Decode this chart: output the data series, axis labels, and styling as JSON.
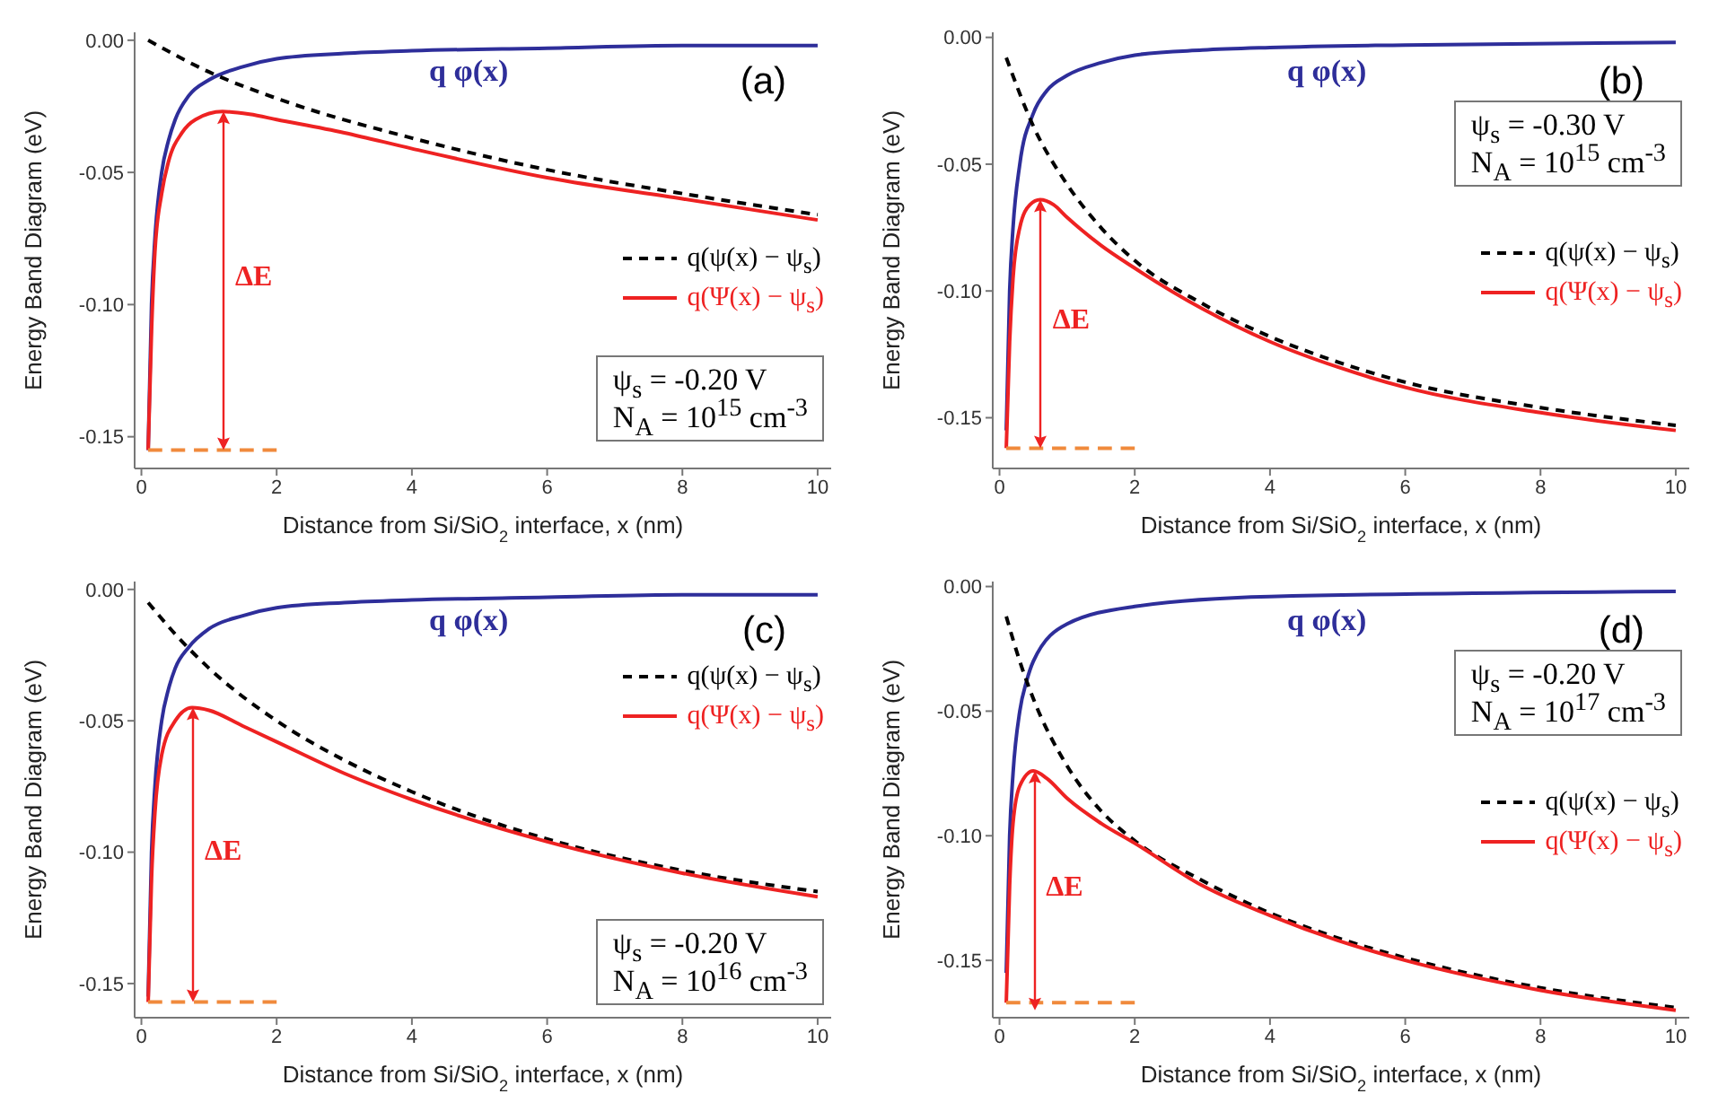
{
  "chart_data": [
    {
      "type": "line",
      "xlabel": "Distance from Si/SiO$_{2}$ interface, x (nm)",
      "ylabel": "Energy Band Diagram (eV)",
      "xlim": [
        -0.1,
        10.2
      ],
      "ylim": [
        -0.162,
        0.003
      ],
      "xticks": [
        0,
        2,
        4,
        6,
        8,
        10
      ],
      "yticks": [
        {
          "value": 0,
          "label": "0.00"
        },
        {
          "value": -0.05,
          "label": "-0.05"
        },
        {
          "value": -0.1,
          "label": "-0.10"
        },
        {
          "value": -0.15,
          "label": "-0.15"
        }
      ],
      "legend": "right",
      "marker": "none",
      "grid": false,
      "annotations": [
        "(a)",
        "q φ(x)",
        "ΔE",
        "ψ$_{s}$ = -0.20 V",
        "N$_{A}$ = 10$^{15}$ cm$^{-3}$"
      ],
      "series": [
        {
          "color": "#2e2e9a",
          "line_style": "solid",
          "x": [
            0.1,
            0.15,
            0.2,
            0.3,
            0.4,
            0.5,
            0.7,
            1,
            1.5,
            2,
            3,
            4,
            6,
            8,
            10
          ],
          "values": [
            -0.155,
            -0.1,
            -0.075,
            -0.05,
            -0.038,
            -0.03,
            -0.021,
            -0.015,
            -0.01,
            -0.007,
            -0.005,
            -0.004,
            -0.003,
            -0.002,
            -0.002
          ]
        },
        {
          "name": "q(ψ(x) − ψ$_{s}$)",
          "color": "#000000",
          "line_style": "dashed",
          "x": [
            0.1,
            1,
            2,
            4,
            6,
            8,
            10
          ],
          "values": [
            0,
            -0.012,
            -0.022,
            -0.037,
            -0.049,
            -0.058,
            -0.066
          ]
        },
        {
          "name": "q(Ψ(x) − ψ$_{s}$)",
          "color": "#ee2222",
          "line_style": "solid",
          "x": [
            0.1,
            0.15,
            0.2,
            0.3,
            0.4,
            0.6,
            0.8,
            1.2,
            1.6,
            2,
            3,
            4,
            6,
            8,
            10
          ],
          "values": [
            -0.155,
            -0.11,
            -0.08,
            -0.058,
            -0.046,
            -0.035,
            -0.03,
            -0.027,
            -0.028,
            -0.03,
            -0.035,
            -0.041,
            -0.052,
            -0.06,
            -0.068
          ]
        },
        {
          "color": "#f08a3c",
          "line_style": "dashed",
          "x": [
            0.1,
            2
          ],
          "values": [
            -0.155,
            -0.155
          ]
        }
      ]
    },
    {
      "type": "line",
      "xlabel": "Distance from Si/SiO$_{2}$ interface, x (nm)",
      "ylabel": "Energy Band Diagram (eV)",
      "xlim": [
        -0.1,
        10.2
      ],
      "ylim": [
        -0.17,
        0.002
      ],
      "xticks": [
        0,
        2,
        4,
        6,
        8,
        10
      ],
      "yticks": [
        {
          "value": 0,
          "label": "0.00"
        },
        {
          "value": -0.05,
          "label": "-0.05"
        },
        {
          "value": -0.1,
          "label": "-0.10"
        },
        {
          "value": -0.15,
          "label": "-0.15"
        }
      ],
      "legend": "right",
      "marker": "none",
      "grid": false,
      "annotations": [
        "(b)",
        "q φ(x)",
        "ΔE",
        "ψ$_{s}$ = -0.30 V",
        "N$_{A}$ = 10$^{15}$ cm$^{-3}$"
      ],
      "series": [
        {
          "color": "#2e2e9a",
          "line_style": "solid",
          "x": [
            0.1,
            0.15,
            0.2,
            0.3,
            0.5,
            0.7,
            1,
            1.5,
            2,
            3,
            4,
            6,
            10
          ],
          "values": [
            -0.155,
            -0.1,
            -0.075,
            -0.05,
            -0.03,
            -0.021,
            -0.015,
            -0.01,
            -0.007,
            -0.005,
            -0.004,
            -0.003,
            -0.002
          ]
        },
        {
          "name": "q(ψ(x) − ψ$_{s}$)",
          "color": "#000000",
          "line_style": "dashed",
          "x": [
            0.1,
            0.5,
            1,
            1.5,
            2,
            3,
            4,
            5,
            6,
            8,
            10
          ],
          "values": [
            -0.008,
            -0.035,
            -0.058,
            -0.075,
            -0.088,
            -0.105,
            -0.118,
            -0.128,
            -0.136,
            -0.146,
            -0.153
          ]
        },
        {
          "name": "q(Ψ(x) − ψ$_{s}$)",
          "color": "#ee2222",
          "line_style": "solid",
          "x": [
            0.1,
            0.15,
            0.2,
            0.3,
            0.45,
            0.6,
            0.8,
            1,
            1.5,
            2,
            3,
            4,
            5,
            6,
            8,
            10
          ],
          "values": [
            -0.162,
            -0.12,
            -0.095,
            -0.075,
            -0.066,
            -0.064,
            -0.066,
            -0.071,
            -0.082,
            -0.091,
            -0.107,
            -0.12,
            -0.13,
            -0.138,
            -0.148,
            -0.155
          ]
        },
        {
          "color": "#f08a3c",
          "line_style": "dashed",
          "x": [
            0.1,
            2
          ],
          "values": [
            -0.162,
            -0.162
          ]
        }
      ]
    },
    {
      "type": "line",
      "xlabel": "Distance from Si/SiO$_{2}$ interface, x (nm)",
      "ylabel": "Energy Band Diagram (eV)",
      "xlim": [
        -0.1,
        10.2
      ],
      "ylim": [
        -0.163,
        0.003
      ],
      "xticks": [
        0,
        2,
        4,
        6,
        8,
        10
      ],
      "yticks": [
        {
          "value": 0,
          "label": "0.00"
        },
        {
          "value": -0.05,
          "label": "-0.05"
        },
        {
          "value": -0.1,
          "label": "-0.10"
        },
        {
          "value": -0.15,
          "label": "-0.15"
        }
      ],
      "legend": "top right",
      "marker": "none",
      "grid": false,
      "annotations": [
        "(c)",
        "q φ(x)",
        "ΔE",
        "ψ$_{s}$ = -0.20 V",
        "N$_{A}$ = 10$^{16}$ cm$^{-3}$"
      ],
      "series": [
        {
          "color": "#2e2e9a",
          "line_style": "solid",
          "x": [
            0.1,
            0.15,
            0.2,
            0.3,
            0.4,
            0.5,
            0.7,
            1,
            1.5,
            2,
            3,
            4,
            6,
            8,
            10
          ],
          "values": [
            -0.155,
            -0.1,
            -0.075,
            -0.05,
            -0.038,
            -0.03,
            -0.022,
            -0.015,
            -0.01,
            -0.007,
            -0.005,
            -0.004,
            -0.003,
            -0.002,
            -0.002
          ]
        },
        {
          "name": "q(ψ(x) − ψ$_{s}$)",
          "color": "#000000",
          "line_style": "dashed",
          "x": [
            0.1,
            0.5,
            1,
            2,
            3,
            4,
            6,
            8,
            10
          ],
          "values": [
            -0.005,
            -0.017,
            -0.03,
            -0.05,
            -0.065,
            -0.077,
            -0.095,
            -0.107,
            -0.115
          ]
        },
        {
          "name": "q(Ψ(x) − ψ$_{s}$)",
          "color": "#ee2222",
          "line_style": "solid",
          "x": [
            0.1,
            0.15,
            0.2,
            0.3,
            0.5,
            0.75,
            1,
            1.5,
            2,
            3,
            4,
            6,
            8,
            10
          ],
          "values": [
            -0.157,
            -0.11,
            -0.085,
            -0.063,
            -0.05,
            -0.045,
            -0.046,
            -0.052,
            -0.058,
            -0.07,
            -0.08,
            -0.096,
            -0.108,
            -0.117
          ]
        },
        {
          "color": "#f08a3c",
          "line_style": "dashed",
          "x": [
            0.1,
            2
          ],
          "values": [
            -0.157,
            -0.157
          ]
        }
      ]
    },
    {
      "type": "line",
      "xlabel": "Distance from Si/SiO$_{2}$ interface, x (nm)",
      "ylabel": "Energy Band Diagram (eV)",
      "xlim": [
        -0.1,
        10.2
      ],
      "ylim": [
        -0.173,
        0.002
      ],
      "xticks": [
        0,
        2,
        4,
        6,
        8,
        10
      ],
      "yticks": [
        {
          "value": 0,
          "label": "0.00"
        },
        {
          "value": -0.05,
          "label": "-0.05"
        },
        {
          "value": -0.1,
          "label": "-0.10"
        },
        {
          "value": -0.15,
          "label": "-0.15"
        }
      ],
      "legend": "right",
      "marker": "none",
      "grid": false,
      "annotations": [
        "(d)",
        "q φ(x)",
        "ΔE",
        "ψ$_{s}$ = -0.20 V",
        "N$_{A}$ = 10$^{17}$ cm$^{-3}$"
      ],
      "series": [
        {
          "color": "#2e2e9a",
          "line_style": "solid",
          "x": [
            0.1,
            0.15,
            0.2,
            0.3,
            0.4,
            0.5,
            1,
            2,
            4,
            10
          ],
          "values": [
            -0.155,
            -0.1,
            -0.075,
            -0.05,
            -0.038,
            -0.03,
            -0.015,
            -0.008,
            -0.004,
            -0.002
          ]
        },
        {
          "name": "q(ψ(x) − ψ$_{s}$)",
          "color": "#000000",
          "line_style": "dashed",
          "x": [
            0.1,
            0.3,
            0.5,
            1,
            1.5,
            2,
            3,
            4,
            5,
            6,
            8,
            10
          ],
          "values": [
            -0.012,
            -0.03,
            -0.045,
            -0.072,
            -0.09,
            -0.102,
            -0.118,
            -0.131,
            -0.141,
            -0.149,
            -0.161,
            -0.169
          ]
        },
        {
          "name": "q(Ψ(x) − ψ$_{s}$)",
          "color": "#ee2222",
          "line_style": "solid",
          "x": [
            0.1,
            0.15,
            0.2,
            0.3,
            0.5,
            0.7,
            1,
            1.5,
            2,
            3,
            4,
            5,
            6,
            8,
            10
          ],
          "values": [
            -0.167,
            -0.12,
            -0.095,
            -0.08,
            -0.074,
            -0.077,
            -0.085,
            -0.095,
            -0.103,
            -0.12,
            -0.132,
            -0.142,
            -0.15,
            -0.162,
            -0.17
          ]
        },
        {
          "color": "#f08a3c",
          "line_style": "dashed",
          "x": [
            0.1,
            2
          ],
          "values": [
            -0.167,
            -0.167
          ]
        }
      ]
    }
  ]
}
